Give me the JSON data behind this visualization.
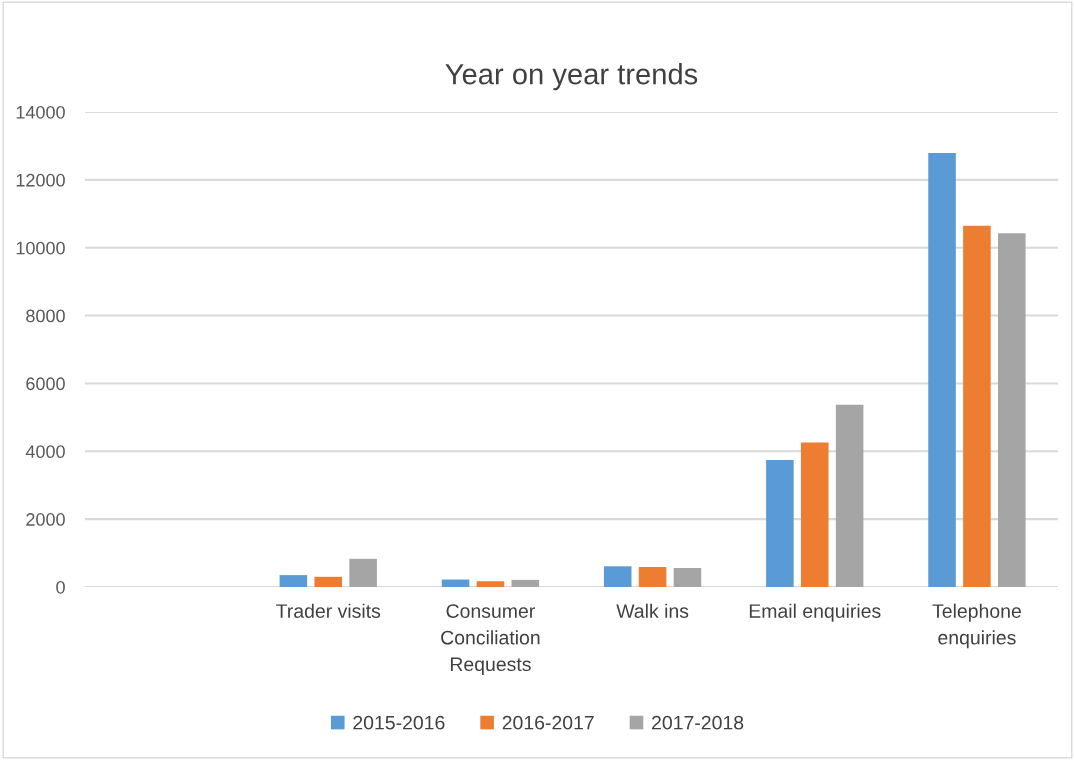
{
  "chart_data": {
    "type": "bar",
    "title": "Year on year trends",
    "categories": [
      null,
      "Trader visits",
      "Consumer\nConciliation\nRequests",
      "Walk ins",
      "Email enquiries",
      "Telephone\nenquiries"
    ],
    "series": [
      {
        "name": "2015-2016",
        "color": "#5b9bd5",
        "values": [
          null,
          350,
          220,
          610,
          3740,
          12790
        ]
      },
      {
        "name": "2016-2017",
        "color": "#ed7d31",
        "values": [
          null,
          300,
          170,
          590,
          4260,
          10650
        ]
      },
      {
        "name": "2017-2018",
        "color": "#a5a5a5",
        "values": [
          null,
          830,
          210,
          560,
          5370,
          10430
        ]
      }
    ],
    "ylim": [
      0,
      14000
    ],
    "yticks": [
      0,
      2000,
      4000,
      6000,
      8000,
      10000,
      12000,
      14000
    ],
    "grid": "y",
    "legend": "bottom"
  }
}
